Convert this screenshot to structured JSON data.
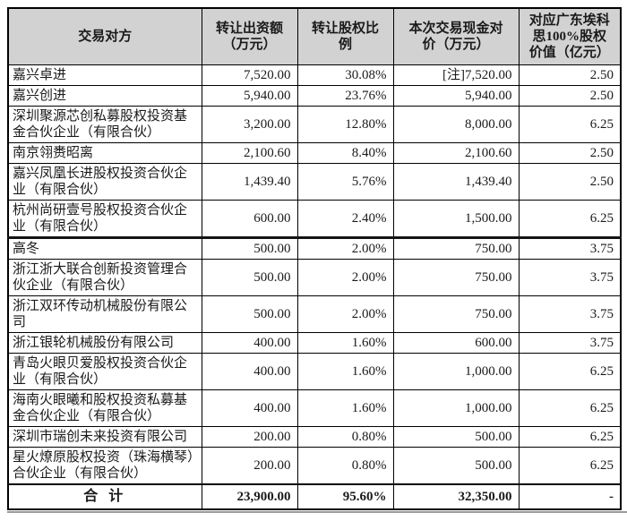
{
  "table": {
    "headers": [
      "交易对方",
      "转让出资额\n（万元）",
      "转让股权比\n例",
      "本次交易现金对\n价（万元）",
      "对应广东埃科\n思100%股权\n价值（亿元）"
    ],
    "rows": [
      {
        "cells": [
          "嘉兴卓进",
          "7,520.00",
          "30.08%",
          "[注]7,520.00",
          "2.50"
        ]
      },
      {
        "cells": [
          "嘉兴创进",
          "5,940.00",
          "23.76%",
          "5,940.00",
          "2.50"
        ]
      },
      {
        "cells": [
          "深圳聚源芯创私募股权投资基金合伙企业（有限合伙）",
          "3,200.00",
          "12.80%",
          "8,000.00",
          "6.25"
        ]
      },
      {
        "cells": [
          "南京翎赉昭离",
          "2,100.60",
          "8.40%",
          "2,100.60",
          "2.50"
        ]
      },
      {
        "cells": [
          "嘉兴凤凰长进股权投资合伙企业（有限合伙）",
          "1,439.40",
          "5.76%",
          "1,439.40",
          "2.50"
        ]
      },
      {
        "cells": [
          "杭州尚研壹号股权投资合伙企业（有限合伙）",
          "600.00",
          "2.40%",
          "1,500.00",
          "6.25"
        ]
      },
      {
        "cells": [
          "高冬",
          "500.00",
          "2.00%",
          "750.00",
          "3.75"
        ],
        "page_break_before": true
      },
      {
        "cells": [
          "浙江浙大联合创新投资管理合伙企业（有限合伙）",
          "500.00",
          "2.00%",
          "750.00",
          "3.75"
        ]
      },
      {
        "cells": [
          "浙江双环传动机械股份有限公司",
          "500.00",
          "2.00%",
          "750.00",
          "3.75"
        ]
      },
      {
        "cells": [
          "浙江银轮机械股份有限公司",
          "400.00",
          "1.60%",
          "600.00",
          "3.75"
        ]
      },
      {
        "cells": [
          "青岛火眼贝爱股权投资合伙企业（有限合伙）",
          "400.00",
          "1.60%",
          "1,000.00",
          "6.25"
        ]
      },
      {
        "cells": [
          "海南火眼曦和股权投资私募基金合伙企业（有限合伙）",
          "400.00",
          "1.60%",
          "1,000.00",
          "6.25"
        ]
      },
      {
        "cells": [
          "深圳市瑞创未来投资有限公司",
          "200.00",
          "0.80%",
          "500.00",
          "6.25"
        ]
      },
      {
        "cells": [
          "星火燎原股权投资（珠海横琴）合伙企业（有限合伙）",
          "200.00",
          "0.80%",
          "500.00",
          "6.25"
        ]
      }
    ],
    "total_row": {
      "cells": [
        "合 计",
        "23,900.00",
        "95.60%",
        "32,350.00",
        "-"
      ]
    }
  },
  "colors": {
    "header_bg": "#d2d2d2",
    "border": "#000000"
  }
}
